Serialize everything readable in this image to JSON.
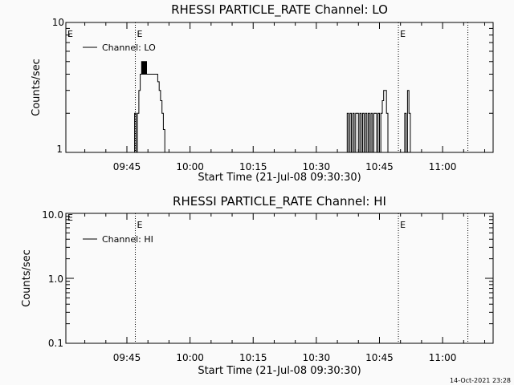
{
  "chart_data": [
    {
      "type": "line",
      "title": "RHESSI PARTICLE_RATE Channel: LO",
      "xlabel": "Start Time (21-Jul-08 09:30:30)",
      "ylabel": "Counts/sec",
      "yscale": "log",
      "ylim": [
        1,
        10
      ],
      "ytick_labels": [
        "1",
        "10"
      ],
      "xlim": [
        "09:30:30",
        "11:12:00"
      ],
      "xtick_labels": [
        "09:45",
        "10:00",
        "10:15",
        "10:30",
        "10:45",
        "11:00"
      ],
      "event_markers": [
        {
          "time": "09:47:00",
          "label": "E"
        },
        {
          "time": "10:49:30",
          "label": "E"
        },
        {
          "time": "11:06:00",
          "label": ""
        }
      ],
      "left_marker_label": "E",
      "legend": {
        "position": "top-left",
        "entries": [
          "Channel: LO"
        ]
      },
      "series": [
        {
          "name": "Channel: LO",
          "x": [
            "09:46:30",
            "09:46:50",
            "09:47:10",
            "09:47:30",
            "09:47:50",
            "09:48:00",
            "09:48:10",
            "09:48:20",
            "09:48:30",
            "09:48:40",
            "09:48:50",
            "09:49:00",
            "09:49:10",
            "09:49:20",
            "09:49:30",
            "09:49:40",
            "09:49:50",
            "09:50:00",
            "09:50:10",
            "09:50:20",
            "09:50:30",
            "09:50:40",
            "09:50:50",
            "09:51:00",
            "09:51:20",
            "09:51:40",
            "09:52:00",
            "09:52:20",
            "09:52:40",
            "09:53:00",
            "09:53:20",
            "09:53:40",
            "09:54:00",
            "09:54:20",
            "09:54:40",
            "10:37:00",
            "10:37:20",
            "10:37:40",
            "10:38:00",
            "10:38:20",
            "10:38:40",
            "10:39:00",
            "10:39:20",
            "10:39:40",
            "10:40:00",
            "10:40:20",
            "10:40:40",
            "10:41:00",
            "10:41:20",
            "10:41:40",
            "10:42:00",
            "10:42:20",
            "10:42:40",
            "10:43:00",
            "10:43:20",
            "10:43:40",
            "10:44:00",
            "10:44:20",
            "10:44:40",
            "10:45:00",
            "10:45:20",
            "10:45:40",
            "10:46:00",
            "10:46:20",
            "10:46:40",
            "10:47:00",
            "10:47:20",
            "10:50:40",
            "10:51:00",
            "10:51:20",
            "10:51:40",
            "10:52:00",
            "10:52:20",
            "10:52:40",
            "10:53:00"
          ],
          "y": [
            1,
            2,
            1,
            2,
            3,
            3,
            4,
            4,
            5,
            4,
            5,
            4,
            5,
            4,
            5,
            4,
            4,
            4,
            4,
            4,
            4,
            4,
            4,
            4,
            4,
            4,
            4,
            3.5,
            3,
            2.5,
            2,
            1.5,
            1,
            1,
            1,
            1,
            2,
            1,
            2,
            1,
            2,
            1,
            2,
            2,
            1,
            2,
            1,
            2,
            1,
            2,
            1,
            2,
            1,
            2,
            1,
            2,
            2,
            1,
            2,
            1,
            2,
            2.5,
            3,
            3,
            2,
            1,
            1,
            1,
            2,
            1,
            3,
            2,
            1,
            1,
            1
          ]
        }
      ]
    },
    {
      "type": "line",
      "title": "RHESSI PARTICLE_RATE Channel: HI",
      "xlabel": "Start Time (21-Jul-08 09:30:30)",
      "ylabel": "Counts/sec",
      "yscale": "log",
      "ylim": [
        0.1,
        10
      ],
      "ytick_labels": [
        "0.1",
        "1.0",
        "10.0"
      ],
      "xlim": [
        "09:30:30",
        "11:12:00"
      ],
      "xtick_labels": [
        "09:45",
        "10:00",
        "10:15",
        "10:30",
        "10:45",
        "11:00"
      ],
      "event_markers": [
        {
          "time": "09:47:00",
          "label": "E"
        },
        {
          "time": "10:49:30",
          "label": "E"
        },
        {
          "time": "11:06:00",
          "label": ""
        }
      ],
      "left_marker_label": "E",
      "legend": {
        "position": "top-left",
        "entries": [
          "Channel: HI"
        ]
      },
      "series": [
        {
          "name": "Channel: HI",
          "x": [],
          "y": []
        }
      ]
    }
  ],
  "footer": {
    "timestamp": "14-Oct-2021 23:28"
  }
}
